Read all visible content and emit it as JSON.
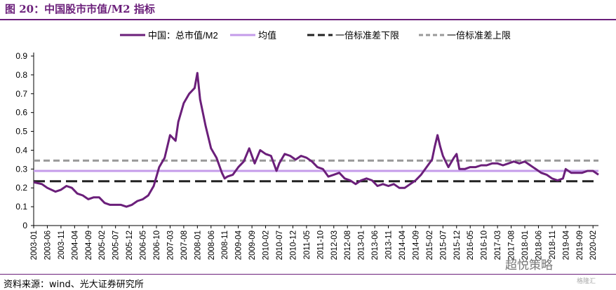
{
  "figure_title": "图 20：中国股市市值/M2 指标",
  "source": "资料来源：wind、光大证券研究所",
  "watermark": "超悦策略",
  "watermark_small": "格隆汇",
  "colors": {
    "main": "#6b1f7a",
    "mean": "#c49bea",
    "lower": "#222222",
    "upper": "#999999",
    "title": "#6b1f7a"
  },
  "chart_data": {
    "type": "line",
    "ylim": [
      0,
      0.9
    ],
    "yticks": [
      "0",
      "0.1",
      "0.2",
      "0.3",
      "0.4",
      "0.5",
      "0.6",
      "0.7",
      "0.8",
      "0.9"
    ],
    "x_start": "2003-01",
    "x_end": "2020-04",
    "xticks": [
      "2003-01",
      "2003-06",
      "2003-11",
      "2004-04",
      "2004-09",
      "2005-02",
      "2005-07",
      "2005-12",
      "2006-05",
      "2006-10",
      "2007-03",
      "2007-08",
      "2008-01",
      "2008-06",
      "2008-11",
      "2009-04",
      "2009-09",
      "2010-02",
      "2010-07",
      "2010-12",
      "2011-05",
      "2011-10",
      "2012-03",
      "2012-08",
      "2013-01",
      "2013-06",
      "2013-11",
      "2014-04",
      "2014-09",
      "2015-02",
      "2015-07",
      "2015-12",
      "2016-05",
      "2016-10",
      "2017-03",
      "2017-08",
      "2018-01",
      "2018-06",
      "2018-11",
      "2019-04",
      "2019-09",
      "2020-02"
    ],
    "legend": [
      "中国：总市值/M2",
      "均值",
      "一倍标准差下限",
      "一倍标准差上限"
    ],
    "legend_position": "top",
    "series": [
      {
        "name": "中国：总市值/M2",
        "style": "solid",
        "x": [
          "2003-01",
          "2003-04",
          "2003-06",
          "2003-09",
          "2003-11",
          "2004-01",
          "2004-03",
          "2004-05",
          "2004-07",
          "2004-09",
          "2004-11",
          "2005-01",
          "2005-03",
          "2005-05",
          "2005-07",
          "2005-09",
          "2005-11",
          "2006-01",
          "2006-03",
          "2006-05",
          "2006-07",
          "2006-09",
          "2006-11",
          "2007-01",
          "2007-03",
          "2007-05",
          "2007-06",
          "2007-08",
          "2007-10",
          "2007-12",
          "2008-01",
          "2008-02",
          "2008-04",
          "2008-06",
          "2008-08",
          "2008-10",
          "2008-11",
          "2008-12",
          "2009-02",
          "2009-04",
          "2009-06",
          "2009-08",
          "2009-10",
          "2009-12",
          "2010-02",
          "2010-04",
          "2010-06",
          "2010-07",
          "2010-09",
          "2010-11",
          "2011-01",
          "2011-03",
          "2011-05",
          "2011-07",
          "2011-09",
          "2011-11",
          "2012-01",
          "2012-03",
          "2012-05",
          "2012-07",
          "2012-09",
          "2012-11",
          "2013-01",
          "2013-03",
          "2013-05",
          "2013-07",
          "2013-09",
          "2013-11",
          "2014-01",
          "2014-03",
          "2014-05",
          "2014-07",
          "2014-09",
          "2014-11",
          "2015-01",
          "2015-03",
          "2015-04",
          "2015-05",
          "2015-06",
          "2015-07",
          "2015-09",
          "2015-11",
          "2015-12",
          "2016-01",
          "2016-03",
          "2016-05",
          "2016-07",
          "2016-09",
          "2016-11",
          "2017-01",
          "2017-03",
          "2017-05",
          "2017-07",
          "2017-09",
          "2017-11",
          "2018-01",
          "2018-03",
          "2018-05",
          "2018-07",
          "2018-09",
          "2018-11",
          "2019-01",
          "2019-03",
          "2019-04",
          "2019-06",
          "2019-08",
          "2019-10",
          "2019-12",
          "2020-02",
          "2020-04"
        ],
        "values": [
          0.23,
          0.22,
          0.2,
          0.18,
          0.19,
          0.21,
          0.2,
          0.17,
          0.16,
          0.14,
          0.15,
          0.15,
          0.12,
          0.11,
          0.11,
          0.11,
          0.1,
          0.11,
          0.13,
          0.14,
          0.16,
          0.21,
          0.31,
          0.36,
          0.48,
          0.45,
          0.55,
          0.65,
          0.7,
          0.73,
          0.81,
          0.67,
          0.53,
          0.41,
          0.36,
          0.28,
          0.25,
          0.26,
          0.27,
          0.31,
          0.34,
          0.41,
          0.33,
          0.4,
          0.38,
          0.37,
          0.29,
          0.33,
          0.38,
          0.37,
          0.35,
          0.37,
          0.36,
          0.34,
          0.31,
          0.3,
          0.26,
          0.27,
          0.28,
          0.25,
          0.24,
          0.22,
          0.24,
          0.25,
          0.24,
          0.21,
          0.22,
          0.21,
          0.22,
          0.2,
          0.2,
          0.22,
          0.24,
          0.27,
          0.31,
          0.35,
          0.42,
          0.48,
          0.42,
          0.37,
          0.31,
          0.36,
          0.38,
          0.3,
          0.3,
          0.31,
          0.31,
          0.32,
          0.32,
          0.33,
          0.33,
          0.32,
          0.33,
          0.34,
          0.33,
          0.34,
          0.32,
          0.3,
          0.28,
          0.27,
          0.25,
          0.24,
          0.25,
          0.3,
          0.28,
          0.28,
          0.28,
          0.29,
          0.29,
          0.27
        ]
      },
      {
        "name": "均值",
        "style": "solid",
        "value": 0.29
      },
      {
        "name": "一倍标准差下限",
        "style": "dashed",
        "value": 0.235
      },
      {
        "name": "一倍标准差上限",
        "style": "dashed",
        "value": 0.345
      }
    ]
  }
}
